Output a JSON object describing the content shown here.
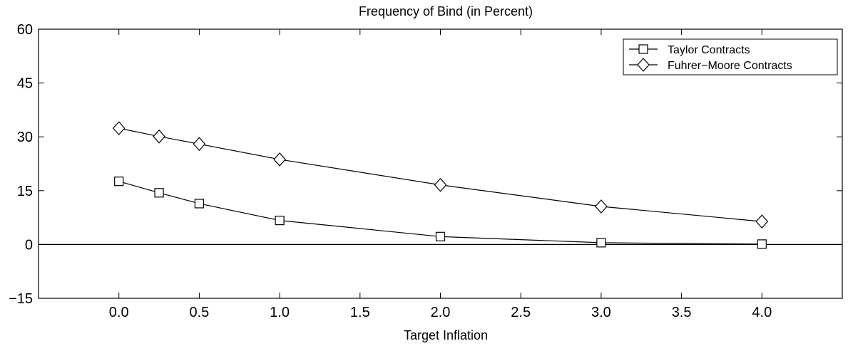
{
  "chart_data": {
    "type": "line",
    "title": "Frequency of Bind (in Percent)",
    "xlabel": "Target Inflation",
    "ylabel": "",
    "xlim": [
      -0.5,
      4.5
    ],
    "ylim": [
      -15,
      60
    ],
    "xticks": [
      0.0,
      0.5,
      1.0,
      1.5,
      2.0,
      2.5,
      3.0,
      3.5,
      4.0
    ],
    "xtick_labels": [
      "0.0",
      "0.5",
      "1.0",
      "1.5",
      "2.0",
      "2.5",
      "3.0",
      "3.5",
      "4.0"
    ],
    "yticks": [
      -15,
      0,
      15,
      30,
      45,
      60
    ],
    "ytick_labels": [
      "−15",
      "0",
      "15",
      "30",
      "45",
      "60"
    ],
    "zero_line": true,
    "grid": false,
    "legend_position": "top-right",
    "series": [
      {
        "name": "Taylor Contracts",
        "marker": "square",
        "x": [
          0.0,
          0.25,
          0.5,
          1.0,
          2.0,
          3.0,
          4.0
        ],
        "y": [
          17.6,
          14.4,
          11.4,
          6.7,
          2.2,
          0.5,
          0.1
        ]
      },
      {
        "name": "Fuhrer−Moore Contracts",
        "marker": "diamond",
        "x": [
          0.0,
          0.25,
          0.5,
          1.0,
          2.0,
          3.0,
          4.0
        ],
        "y": [
          32.4,
          30.1,
          28.0,
          23.7,
          16.6,
          10.6,
          6.4
        ]
      }
    ]
  }
}
